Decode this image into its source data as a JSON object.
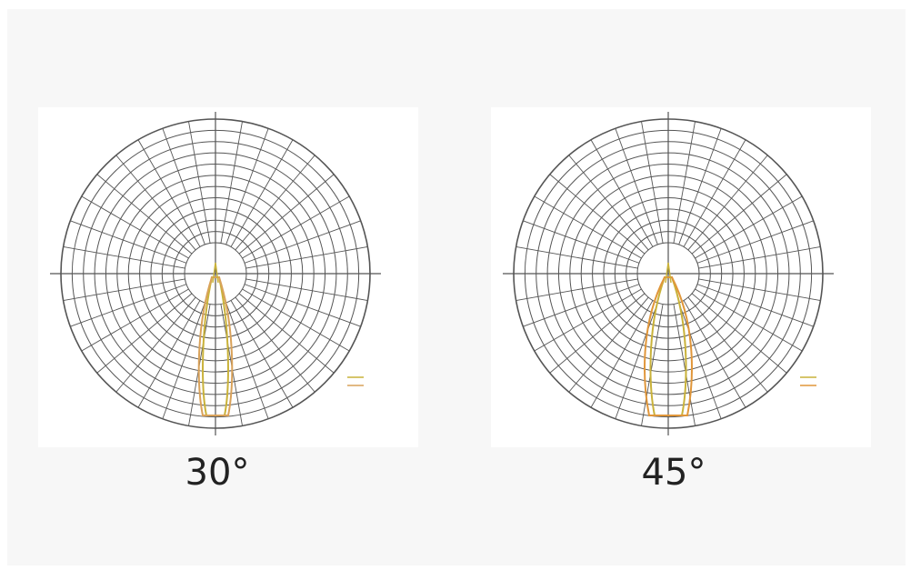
{
  "chart_data": [
    {
      "type": "polar",
      "caption": "30°",
      "beam_angle_deg": 30,
      "grid": true,
      "rings": 11,
      "radial_spokes_deg_step": 10,
      "legend_position": "bottom-right",
      "series": [
        {
          "color": "#c9b23a"
        },
        {
          "color": "#d9a25a"
        }
      ]
    },
    {
      "type": "polar",
      "caption": "45°",
      "beam_angle_deg": 45,
      "grid": true,
      "rings": 11,
      "radial_spokes_deg_step": 10,
      "legend_position": "bottom-right",
      "series": [
        {
          "color": "#c9b23a"
        },
        {
          "color": "#e0963a"
        }
      ]
    }
  ],
  "colors": {
    "grid": "#555555",
    "background": "#f7f7f7",
    "panel": "#ffffff"
  }
}
